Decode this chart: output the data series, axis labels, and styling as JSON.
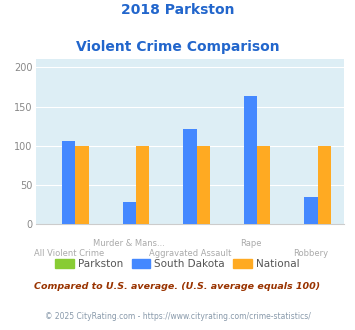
{
  "title_line1": "2018 Parkston",
  "title_line2": "Violent Crime Comparison",
  "categories": [
    "All Violent Crime",
    "Murder & Mans...",
    "Aggravated Assault",
    "Rape",
    "Robbery"
  ],
  "category_labels_row1": [
    "",
    "Murder & Mans...",
    "",
    "Rape",
    ""
  ],
  "category_labels_row2": [
    "All Violent Crime",
    "",
    "Aggravated Assault",
    "",
    "Robbery"
  ],
  "parkston_values": [
    0,
    0,
    0,
    0,
    0
  ],
  "south_dakota_values": [
    106,
    28,
    122,
    163,
    35
  ],
  "national_values": [
    100,
    100,
    100,
    100,
    100
  ],
  "parkston_color": "#88cc33",
  "south_dakota_color": "#4488ff",
  "national_color": "#ffaa22",
  "bg_color": "#ddeef5",
  "title_color": "#2266cc",
  "ylabel_values": [
    0,
    50,
    100,
    150,
    200
  ],
  "ylim": [
    0,
    210
  ],
  "footnote": "Compared to U.S. average. (U.S. average equals 100)",
  "footnote2": "© 2025 CityRating.com - https://www.cityrating.com/crime-statistics/",
  "footnote_color": "#993300",
  "footnote2_color": "#8899aa",
  "legend_labels": [
    "Parkston",
    "South Dakota",
    "National"
  ]
}
